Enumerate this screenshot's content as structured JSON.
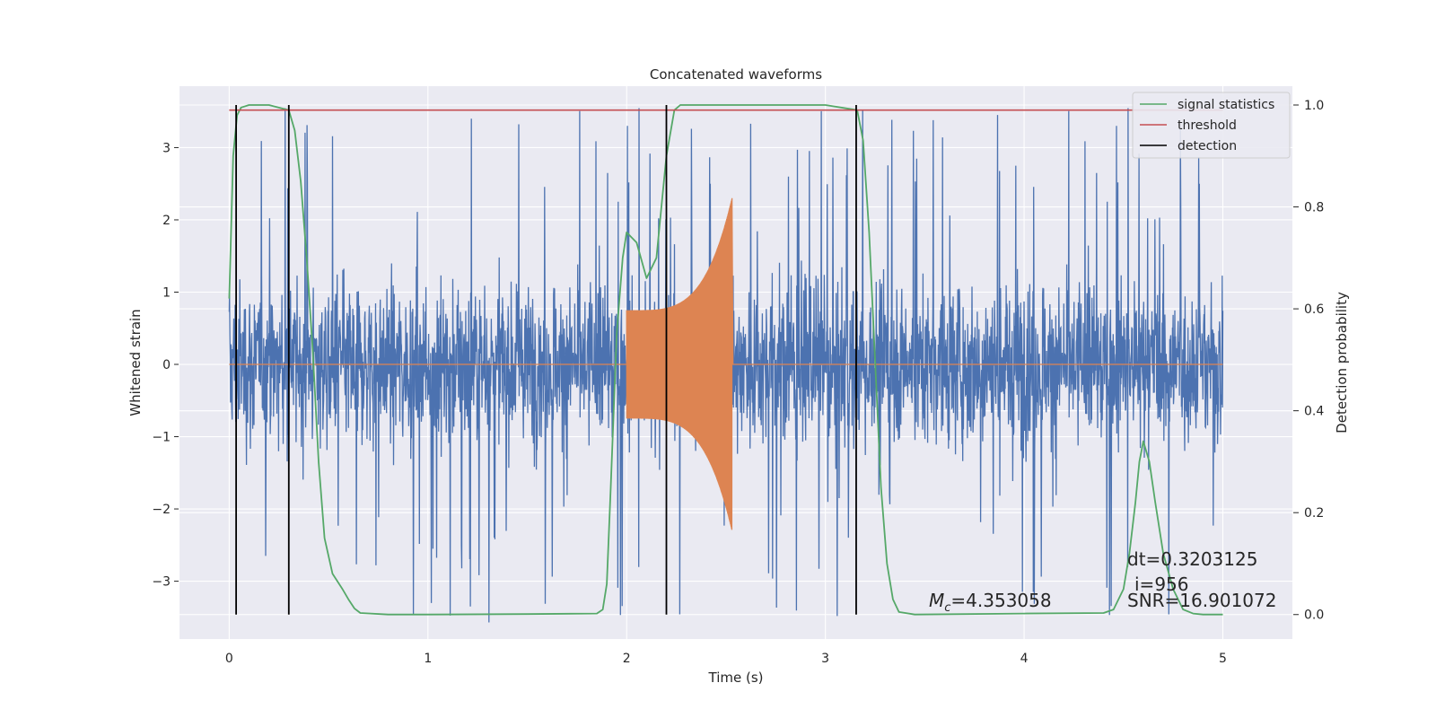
{
  "chart_data": {
    "type": "line",
    "title": "Concatenated waveforms",
    "xlabel": "Time (s)",
    "ylabel": "Whitened strain",
    "y2label": "Detection probability",
    "xlim": [
      -0.25,
      5.35
    ],
    "ylim": [
      -3.8,
      3.85
    ],
    "y2lim": [
      -0.048,
      1.037
    ],
    "xticks": [
      0,
      1,
      2,
      3,
      4,
      5
    ],
    "yticks": [
      -3,
      -2,
      -1,
      0,
      1,
      2,
      3
    ],
    "y2ticks": [
      0.0,
      0.2,
      0.4,
      0.6,
      0.8,
      1.0
    ],
    "grid": true,
    "legend_position": "top-right",
    "legend": [
      "signal statistics",
      "threshold",
      "detection"
    ],
    "series": [
      {
        "name": "whitened strain (noise+signal)",
        "color": "#4c72b0",
        "axis": "left",
        "description_envelope": {
          "x_range": [
            0,
            5
          ],
          "typical_amplitude": 1.6,
          "max_spike": 3.6
        }
      },
      {
        "name": "injected waveform",
        "color": "#dd8452",
        "axis": "left",
        "segment": {
          "x_start": 2.0,
          "x_end": 2.53,
          "amp_start": 0.75,
          "amp_end": 2.3
        }
      },
      {
        "name": "signal statistics",
        "color": "#55a868",
        "axis": "right",
        "x": [
          0.0,
          0.02,
          0.04,
          0.06,
          0.1,
          0.2,
          0.3,
          0.33,
          0.36,
          0.39,
          0.42,
          0.45,
          0.48,
          0.52,
          0.57,
          0.6,
          0.63,
          0.66,
          0.8,
          1.0,
          1.5,
          1.85,
          1.88,
          1.9,
          1.92,
          1.95,
          1.98,
          2.0,
          2.05,
          2.1,
          2.15,
          2.2,
          2.24,
          2.27,
          2.3,
          2.5,
          3.0,
          3.16,
          3.19,
          3.22,
          3.25,
          3.28,
          3.31,
          3.34,
          3.37,
          3.45,
          4.0,
          4.4,
          4.45,
          4.5,
          4.53,
          4.56,
          4.58,
          4.6,
          4.63,
          4.66,
          4.7,
          4.75,
          4.8,
          4.85,
          4.9,
          5.0
        ],
        "y": [
          0.62,
          0.9,
          0.98,
          0.995,
          1.0,
          1.0,
          0.99,
          0.95,
          0.85,
          0.7,
          0.52,
          0.3,
          0.15,
          0.08,
          0.05,
          0.03,
          0.012,
          0.003,
          0.0,
          0.0,
          0.001,
          0.002,
          0.01,
          0.06,
          0.25,
          0.55,
          0.7,
          0.75,
          0.73,
          0.66,
          0.7,
          0.9,
          0.99,
          1.0,
          1.0,
          1.0,
          1.0,
          0.99,
          0.93,
          0.75,
          0.5,
          0.25,
          0.1,
          0.03,
          0.005,
          0.0,
          0.002,
          0.003,
          0.01,
          0.05,
          0.12,
          0.22,
          0.3,
          0.34,
          0.3,
          0.22,
          0.12,
          0.05,
          0.01,
          0.002,
          0.0,
          0.0
        ]
      },
      {
        "name": "threshold",
        "color": "#c44e52",
        "axis": "right",
        "x": [
          0,
          5
        ],
        "y": [
          0.99,
          0.99
        ]
      },
      {
        "name": "detection",
        "color": "#000000",
        "axis": "right",
        "x": [
          0.035,
          0.3,
          2.2,
          3.155
        ]
      }
    ],
    "annotations": {
      "mc": "=4.353058",
      "dt": "dt=0.3203125",
      "i": "i=956",
      "snr": "SNR=16.901072"
    }
  }
}
